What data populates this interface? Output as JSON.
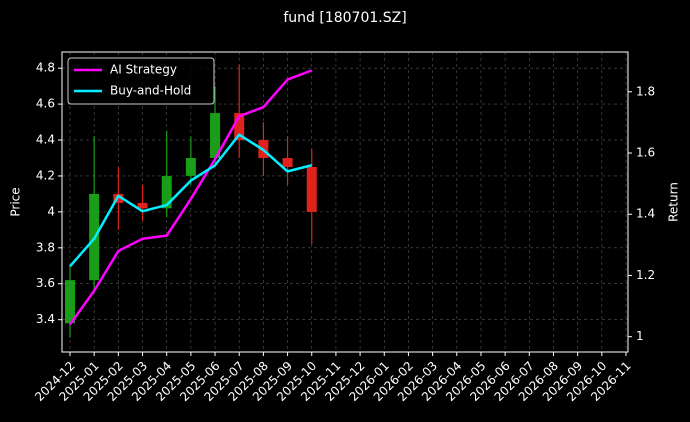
{
  "chart_data": {
    "type": "candlestick",
    "title": "fund [180701.SZ]",
    "y_label": "Price",
    "y2_label": "Return",
    "x": [
      "2024-12",
      "2025-01",
      "2025-02",
      "2025-03",
      "2025-04",
      "2025-05",
      "2025-06",
      "2025-07",
      "2025-08",
      "2025-09",
      "2025-10"
    ],
    "open": [
      3.38,
      3.62,
      4.1,
      4.05,
      4.02,
      4.2,
      4.3,
      4.55,
      4.4,
      4.3,
      4.25
    ],
    "high": [
      3.7,
      4.42,
      4.25,
      4.15,
      4.45,
      4.42,
      4.7,
      4.82,
      4.5,
      4.42,
      4.35
    ],
    "low": [
      3.3,
      3.55,
      3.9,
      3.95,
      3.97,
      4.15,
      4.25,
      4.3,
      4.2,
      4.15,
      3.82
    ],
    "close": [
      3.62,
      4.1,
      4.05,
      4.02,
      4.2,
      4.3,
      4.55,
      4.4,
      4.3,
      4.25,
      4.0
    ],
    "up_color": "#1a9e1a",
    "down_color": "#e0221c",
    "series": [
      {
        "name": "AI Strategy",
        "color": "#ff00ff",
        "axis": "y2",
        "values": [
          1.04,
          1.15,
          1.28,
          1.32,
          1.33,
          1.45,
          1.58,
          1.72,
          1.75,
          1.84,
          1.87
        ]
      },
      {
        "name": "Buy-and-Hold",
        "color": "#00f0ff",
        "axis": "y2",
        "values": [
          1.23,
          1.32,
          1.46,
          1.41,
          1.43,
          1.51,
          1.56,
          1.66,
          1.61,
          1.54,
          1.56
        ]
      }
    ],
    "xlim": [
      "2024-12",
      "2026-11"
    ],
    "xticks": [
      "2024-12",
      "2025-01",
      "2025-02",
      "2025-03",
      "2025-04",
      "2025-05",
      "2025-06",
      "2025-07",
      "2025-08",
      "2025-09",
      "2025-10",
      "2025-11",
      "2025-12",
      "2026-01",
      "2026-02",
      "2026-03",
      "2026-04",
      "2026-05",
      "2026-06",
      "2026-07",
      "2026-08",
      "2026-09",
      "2026-10",
      "2026-11"
    ],
    "ylim": [
      3.22,
      4.89
    ],
    "yticks": [
      3.4,
      3.6,
      3.8,
      4.0,
      4.2,
      4.4,
      4.6,
      4.8
    ],
    "y2lim": [
      0.95,
      1.93
    ],
    "y2ticks": [
      1.0,
      1.2,
      1.4,
      1.6,
      1.8
    ],
    "grid": true,
    "legend": "upper left"
  }
}
